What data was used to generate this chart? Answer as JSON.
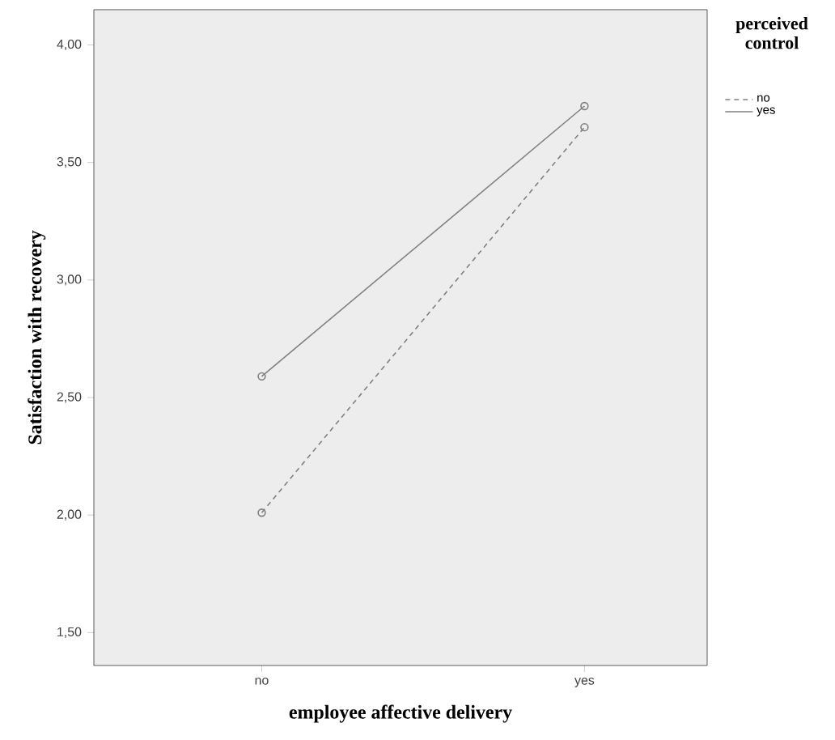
{
  "chart_data": {
    "type": "line",
    "xlabel": "employee affective delivery",
    "ylabel": "Satisfaction with recovery",
    "legend_title": "perceived control",
    "categories": [
      "no",
      "yes"
    ],
    "series": [
      {
        "name": "no",
        "color": "#808080",
        "values": [
          2.01,
          3.65
        ],
        "line_style": "dashed"
      },
      {
        "name": "yes",
        "color": "#808080",
        "values": [
          2.59,
          3.74
        ],
        "line_style": "solid"
      }
    ],
    "ylim": [
      1.36,
      4.15
    ],
    "yticks": [
      {
        "value": 1.5,
        "label": "1,50"
      },
      {
        "value": 2.0,
        "label": "2,00"
      },
      {
        "value": 2.5,
        "label": "2,50"
      },
      {
        "value": 3.0,
        "label": "3,00"
      },
      {
        "value": 3.5,
        "label": "3,50"
      },
      {
        "value": 4.0,
        "label": "4,00"
      }
    ],
    "marker": "circle",
    "legend": "top right",
    "grid": false
  }
}
